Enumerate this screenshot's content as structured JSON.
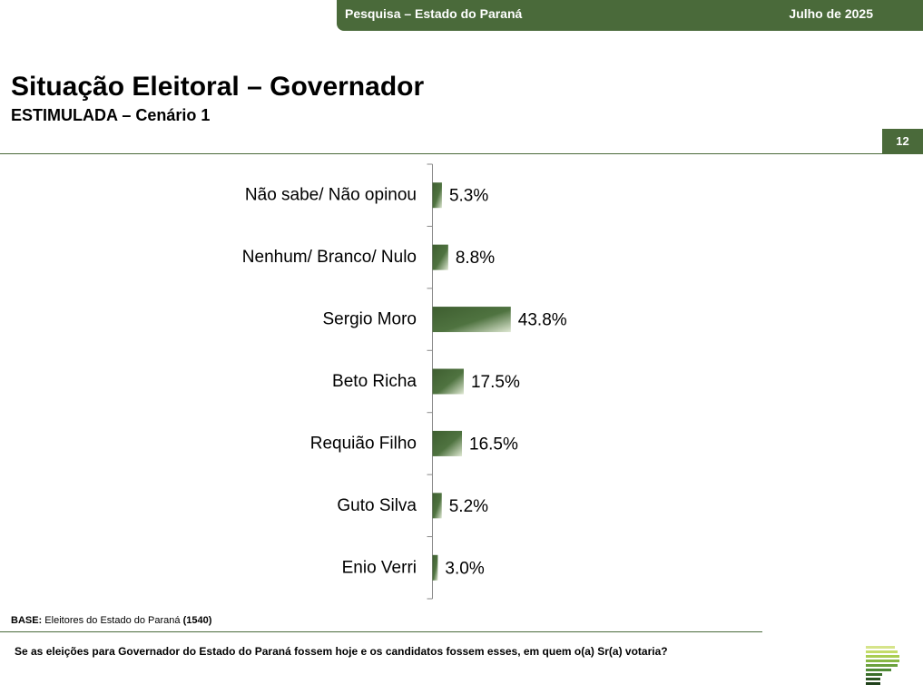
{
  "header": {
    "survey": "Pesquisa – Estado do Paraná",
    "date": "Julho de 2025"
  },
  "title": "Situação Eleitoral – Governador",
  "subtitle": "ESTIMULADA – Cenário 1",
  "page_number": "12",
  "base": {
    "label": "BASE:",
    "text": "Eleitores do Estado do Paraná",
    "count": "(1540)"
  },
  "question": "Se as eleições para Governador do Estado do Paraná fossem hoje e os candidatos fossem esses, em quem o(a) Sr(a) votaria?",
  "colors": {
    "brand": "#4a6a3a",
    "bar_dark": "#3e5e30",
    "bar_light": "#dfe8d3"
  },
  "chart_data": {
    "type": "bar",
    "orientation": "horizontal",
    "categories": [
      "Não sabe/ Não opinou",
      "Nenhum/ Branco/ Nulo",
      "Sergio Moro",
      "Beto Richa",
      "Requião Filho",
      "Guto Silva",
      "Enio Verri"
    ],
    "values": [
      5.3,
      8.8,
      43.8,
      17.5,
      16.5,
      5.2,
      3.0
    ],
    "value_labels": [
      "5.3%",
      "8.8%",
      "43.8%",
      "17.5%",
      "16.5%",
      "5.2%",
      "3.0%"
    ],
    "unit": "%",
    "xlim": [
      0,
      100
    ]
  }
}
